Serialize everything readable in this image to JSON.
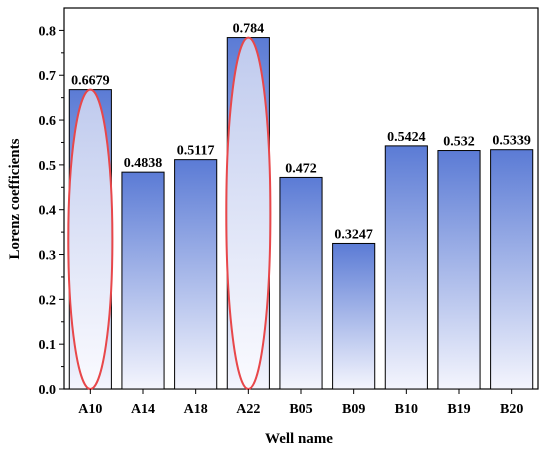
{
  "chart_data": {
    "type": "bar",
    "categories": [
      "A10",
      "A14",
      "A18",
      "A22",
      "B05",
      "B09",
      "B10",
      "B19",
      "B20"
    ],
    "values": [
      0.6679,
      0.4838,
      0.5117,
      0.784,
      0.472,
      0.3247,
      0.5424,
      0.532,
      0.5339
    ],
    "value_labels": [
      "0.6679",
      "0.4838",
      "0.5117",
      "0.784",
      "0.472",
      "0.3247",
      "0.5424",
      "0.532",
      "0.5339"
    ],
    "xlabel": "Well name",
    "ylabel": "Lorenz coefficients",
    "ylim": [
      0,
      0.85
    ],
    "yticks": [
      "0.0",
      "0.1",
      "0.2",
      "0.3",
      "0.4",
      "0.5",
      "0.6",
      "0.7",
      "0.8"
    ],
    "highlighted_categories": [
      "A10",
      "A22"
    ],
    "grid": false,
    "colors": {
      "bar_top": "#5b7bd5",
      "bar_bottom": "#f4f5fd",
      "bar_edge": "#000000",
      "highlight_edge": "#e8474a"
    }
  }
}
